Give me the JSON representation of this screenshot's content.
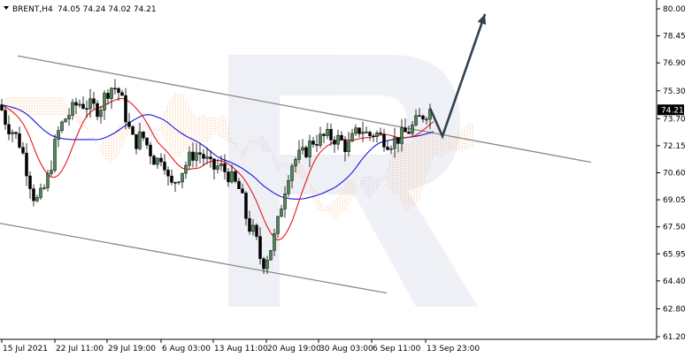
{
  "header": {
    "symbol_label": "BRENT,H4",
    "ohlc": "74.05 74.24 74.02 74.21"
  },
  "current_price": "74.21",
  "chart_data": {
    "type": "candlestick",
    "title": "",
    "ylim": [
      61.2,
      80.5
    ],
    "y_ticks": [
      "80.00",
      "78.45",
      "76.90",
      "75.30",
      "73.70",
      "72.15",
      "70.60",
      "69.05",
      "67.50",
      "65.95",
      "64.40",
      "62.80",
      "61.20"
    ],
    "x_ticks": [
      "15 Jul 2021",
      "22 Jul 11:00",
      "29 Jul 19:00",
      "6 Aug 03:00",
      "13 Aug 11:00",
      "20 Aug 19:00",
      "30 Aug 03:00",
      "6 Sep 11:00",
      "13 Sep 23:00"
    ],
    "close_path": [
      [
        0,
        74.5
      ],
      [
        8,
        73.3
      ],
      [
        16,
        72.9
      ],
      [
        24,
        72.1
      ],
      [
        32,
        70.4
      ],
      [
        40,
        68.9
      ],
      [
        48,
        69.4
      ],
      [
        56,
        70.6
      ],
      [
        64,
        72.7
      ],
      [
        72,
        73.6
      ],
      [
        80,
        74.1
      ],
      [
        88,
        74.6
      ],
      [
        96,
        74.5
      ],
      [
        104,
        74.4
      ],
      [
        112,
        74.2
      ],
      [
        120,
        75.2
      ],
      [
        128,
        75.6
      ],
      [
        136,
        75.1
      ],
      [
        144,
        73.4
      ],
      [
        152,
        72.2
      ],
      [
        160,
        72.8
      ],
      [
        168,
        72.0
      ],
      [
        176,
        71.2
      ],
      [
        184,
        71.7
      ],
      [
        192,
        69.7
      ],
      [
        200,
        70.3
      ],
      [
        208,
        70.9
      ],
      [
        216,
        71.6
      ],
      [
        224,
        71.8
      ],
      [
        232,
        71.4
      ],
      [
        240,
        70.8
      ],
      [
        248,
        71.0
      ],
      [
        256,
        70.6
      ],
      [
        264,
        70.1
      ],
      [
        272,
        69.5
      ],
      [
        280,
        67.6
      ],
      [
        288,
        67.1
      ],
      [
        296,
        65.3
      ],
      [
        304,
        66.0
      ],
      [
        312,
        67.2
      ],
      [
        320,
        69.3
      ],
      [
        328,
        71.0
      ],
      [
        336,
        71.5
      ],
      [
        344,
        71.7
      ],
      [
        352,
        72.4
      ],
      [
        360,
        72.5
      ],
      [
        368,
        72.7
      ],
      [
        376,
        72.6
      ],
      [
        384,
        72.5
      ],
      [
        392,
        72.0
      ],
      [
        400,
        72.7
      ],
      [
        408,
        73.2
      ],
      [
        416,
        72.7
      ],
      [
        424,
        72.9
      ],
      [
        432,
        72.6
      ],
      [
        440,
        72.3
      ],
      [
        448,
        72.5
      ],
      [
        456,
        72.8
      ],
      [
        464,
        73.1
      ],
      [
        472,
        73.6
      ],
      [
        480,
        74.0
      ],
      [
        486,
        74.21
      ]
    ],
    "channel_upper": [
      [
        20,
        77.3
      ],
      [
        668,
        71.2
      ]
    ],
    "channel_lower": [
      [
        0,
        67.7
      ],
      [
        437,
        63.7
      ]
    ],
    "forecast_arrow": [
      [
        486,
        74.3
      ],
      [
        500,
        72.7
      ],
      [
        548,
        79.7
      ]
    ]
  }
}
